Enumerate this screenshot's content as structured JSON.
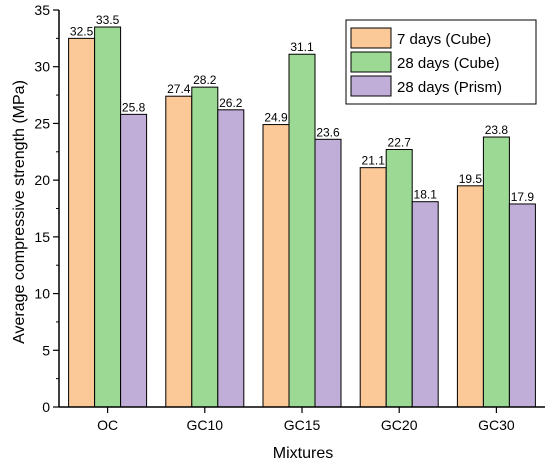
{
  "chart_data": {
    "type": "bar",
    "categories": [
      "OC",
      "GC10",
      "GC15",
      "GC20",
      "GC30"
    ],
    "series": [
      {
        "name": "7 days (Cube)",
        "values": [
          32.5,
          27.4,
          24.9,
          21.1,
          19.5
        ],
        "color": "#FBC898"
      },
      {
        "name": "28 days (Cube)",
        "values": [
          33.5,
          28.2,
          31.1,
          22.7,
          23.8
        ],
        "color": "#9BD994"
      },
      {
        "name": "28 days (Prism)",
        "values": [
          25.8,
          26.2,
          23.6,
          18.1,
          17.9
        ],
        "color": "#C1AED8"
      }
    ],
    "data_labels": [
      [
        "32.5",
        "27.4",
        "24.9",
        "21.1",
        "19.5"
      ],
      [
        "33.5",
        "28.2",
        "31.1",
        "22.7",
        "23.8"
      ],
      [
        "25.8",
        "26.2",
        "23.6",
        "18.1",
        "17.9"
      ]
    ],
    "xlabel": "Mixtures",
    "ylabel": "Average compressive strength (MPa)",
    "ylim": [
      0,
      35
    ],
    "yticks": [
      0,
      5,
      10,
      15,
      20,
      25,
      30,
      35
    ],
    "ytick_labels": [
      "0",
      "5",
      "10",
      "15",
      "20",
      "25",
      "30",
      "35"
    ],
    "grid": false,
    "legend_position": "top-right"
  }
}
